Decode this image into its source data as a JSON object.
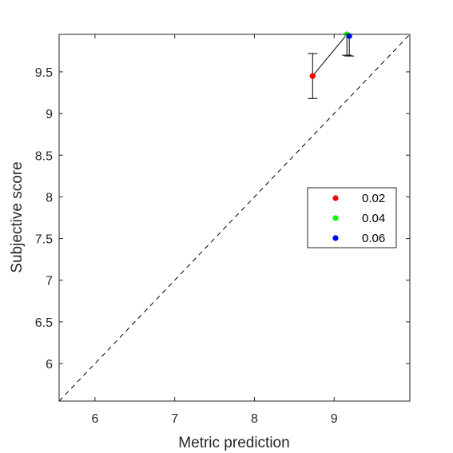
{
  "chart_data": {
    "type": "scatter",
    "xlabel": "Metric prediction",
    "ylabel": "Subjective score",
    "xlim": [
      5.55,
      9.95
    ],
    "ylim": [
      5.55,
      9.95
    ],
    "x_ticks": [
      "6",
      "7",
      "8",
      "9"
    ],
    "y_ticks": [
      "6",
      "6.5",
      "7",
      "7.5",
      "8",
      "8.5",
      "9",
      "9.5"
    ],
    "grid": false,
    "legend_position": "right",
    "reference_line": "y = x (dashed)",
    "connecting_line": true,
    "series": [
      {
        "name": "0.02",
        "color": "#ff0000",
        "x": 8.73,
        "y": 9.45,
        "err_low": 9.18,
        "err_high": 9.72
      },
      {
        "name": "0.04",
        "color": "#00ff00",
        "x": 9.16,
        "y": 9.95,
        "err_low": 9.7,
        "err_high": 9.95
      },
      {
        "name": "0.06",
        "color": "#0000ff",
        "x": 9.19,
        "y": 9.93,
        "err_low": 9.69,
        "err_high": 9.95
      }
    ]
  }
}
